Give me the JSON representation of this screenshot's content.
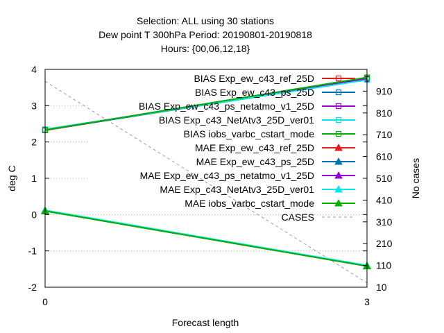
{
  "chart_data": {
    "type": "line",
    "title_lines": [
      "Selection: ALL using    30 stations",
      "Dew point T 300hPa   Period: 20190801-20190818",
      "Hours: {00,06,12,18}"
    ],
    "xlabel": "Forecast length",
    "ylabel": "deg C",
    "y2label": "No cases",
    "x_ticks": [
      "0",
      "3"
    ],
    "x": [
      0,
      3
    ],
    "xlim": [
      0,
      3
    ],
    "ylim": [
      -2,
      4
    ],
    "y_ticks": [
      "-2",
      "-1",
      "0",
      "1",
      "2",
      "3",
      "4"
    ],
    "y2lim": [
      10,
      1010
    ],
    "y2_ticks": [
      "10",
      "110",
      "210",
      "310",
      "410",
      "510",
      "610",
      "710",
      "810",
      "910"
    ],
    "grid": "dotted horizontal",
    "legend_position": "top-right",
    "series": [
      {
        "name": "BIAS Exp_ew_c43_ref_25D",
        "color": "#e41a1c",
        "marker": "open-square",
        "values": [
          2.32,
          3.75
        ]
      },
      {
        "name": "BIAS Exp_ew_c43_ps_25D",
        "color": "#0072b2",
        "marker": "open-square",
        "values": [
          2.33,
          3.72
        ]
      },
      {
        "name": "BIAS Exp_ew_c43_ps_netatmo_v1_25D",
        "color": "#9400d3",
        "marker": "open-square",
        "values": [
          2.34,
          3.74
        ]
      },
      {
        "name": "BIAS Exp_c43_NetAtv3_25D_ver01",
        "color": "#00e5ee",
        "marker": "open-square",
        "values": [
          2.35,
          3.71
        ]
      },
      {
        "name": "BIAS iobs_varbc_cstart_mode",
        "color": "#00b000",
        "marker": "open-square",
        "values": [
          2.33,
          3.78
        ]
      },
      {
        "name": "MAE Exp_ew_c43_ref_25D",
        "color": "#e41a1c",
        "marker": "filled-triangle",
        "values": [
          0.1,
          -1.42
        ]
      },
      {
        "name": "MAE Exp_ew_c43_ps_25D",
        "color": "#0072b2",
        "marker": "filled-triangle",
        "values": [
          0.1,
          -1.41
        ]
      },
      {
        "name": "MAE Exp_ew_c43_ps_netatmo_v1_25D",
        "color": "#9400d3",
        "marker": "filled-triangle",
        "values": [
          0.11,
          -1.41
        ]
      },
      {
        "name": "MAE Exp_c43_NetAtv3_25D_ver01",
        "color": "#00e5ee",
        "marker": "filled-triangle",
        "values": [
          0.12,
          -1.4
        ]
      },
      {
        "name": "MAE iobs_varbc_cstart_mode",
        "color": "#00b000",
        "marker": "filled-triangle",
        "values": [
          0.1,
          -1.42
        ]
      }
    ],
    "cases": {
      "name": "CASES",
      "color": "#999999",
      "axis": "y2",
      "values": [
        955,
        30
      ]
    }
  }
}
